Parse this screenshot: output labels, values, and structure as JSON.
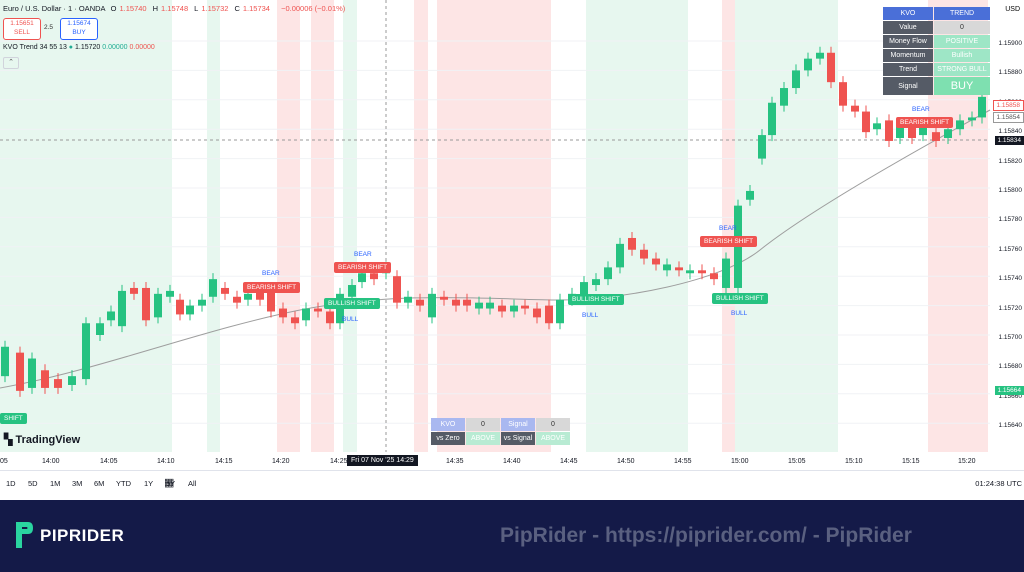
{
  "header": {
    "symbol": "Euro / U.S. Dollar · 1 · OANDA",
    "ohlc": [
      {
        "k": "O",
        "v": "1.15740"
      },
      {
        "k": "H",
        "v": "1.15748"
      },
      {
        "k": "L",
        "v": "1.15732"
      },
      {
        "k": "C",
        "v": "1.15734"
      }
    ],
    "change": "−0.00006 (−0.01%)",
    "sell_price": "1.15651",
    "sell_label": "SELL",
    "buy_price": "1.15674",
    "buy_label": "BUY",
    "spread": "2.5",
    "currency": "USD"
  },
  "indicator": {
    "name": "KVO Trend",
    "params": "34 55 13",
    "v1": "1.15720",
    "v2": "0.00000",
    "v3": "0.00000"
  },
  "logo_text": "TradingView",
  "kvo_table": {
    "rows": [
      {
        "label": "KVO",
        "value": "TREND",
        "lbg": "#4a6fd8",
        "vbg": "#4a6fd8",
        "vc": "#fff"
      },
      {
        "label": "Value",
        "value": "0",
        "lbg": "#555b66",
        "vbg": "#d8d8d8",
        "vc": "#333"
      },
      {
        "label": "Money Flow",
        "value": "POSITIVE",
        "lbg": "#555b66",
        "vbg": "#9ee6c6",
        "vc": "#fff"
      },
      {
        "label": "Momentum",
        "value": "Bullish",
        "lbg": "#555b66",
        "vbg": "#9ee6c6",
        "vc": "#fff"
      },
      {
        "label": "Trend",
        "value": "STRONG BULL",
        "lbg": "#555b66",
        "vbg": "#9ee6c6",
        "vc": "#fff"
      },
      {
        "label": "Signal",
        "value": "BUY",
        "lbg": "#555b66",
        "vbg": "#7ee0b0",
        "vc": "#fff"
      }
    ]
  },
  "bottom_table": {
    "row1": [
      "KVO",
      "0",
      "Signal",
      "0"
    ],
    "row2": [
      "vs Zero",
      "ABOVE",
      "vs Signal",
      "ABOVE"
    ]
  },
  "labels": [
    {
      "text": "BEARISH SHIFT",
      "kind": "red"
    },
    {
      "text": "BULLISH SHIFT",
      "kind": "grn"
    },
    {
      "text": "BEARISH SHIFT",
      "kind": "red"
    },
    {
      "text": "BULLISH SHIFT",
      "kind": "grn"
    },
    {
      "text": "BEARISH SHIFT",
      "kind": "red"
    },
    {
      "text": "BULLISH SHIFT",
      "kind": "grn"
    },
    {
      "text": "BEARISH SHIFT",
      "kind": "red"
    },
    {
      "text": "SHIFT",
      "kind": "grn"
    }
  ],
  "tags": [
    "BEAR",
    "BULL",
    "BEAR",
    "BULL",
    "BEAR",
    "BULL",
    "BEAR"
  ],
  "price_axis": [
    "1.15900",
    "1.15880",
    "1.15860",
    "1.15840",
    "1.15820",
    "1.15800",
    "1.15780",
    "1.15760",
    "1.15740",
    "1.15720",
    "1.15700",
    "1.15680",
    "1.15660",
    "1.15640"
  ],
  "price_tags": {
    "p1": "1.15858",
    "p2": "1.15854",
    "current": "1.15834",
    "bid": "1.15664"
  },
  "time_axis": [
    "05",
    "14:00",
    "14:05",
    "14:10",
    "14:15",
    "14:20",
    "14:25",
    "14:35",
    "14:40",
    "14:45",
    "14:50",
    "14:55",
    "15:00",
    "15:05",
    "15:10",
    "15:15",
    "15:20"
  ],
  "crosshair_time": "Fri 07 Nov '25   14:29",
  "ranges": [
    "1D",
    "5D",
    "1M",
    "3M",
    "6M",
    "YTD",
    "1Y",
    "5Y",
    "All"
  ],
  "clock": "01:24:38 UTC",
  "colors": {
    "up": "#26c281",
    "down": "#ef5350",
    "ma": "#9e9e9e",
    "footer": "#141a48"
  },
  "footer": {
    "brand": "PIPRIDER",
    "watermark": "PipRider - https://piprider.com/ - PipRider"
  }
}
